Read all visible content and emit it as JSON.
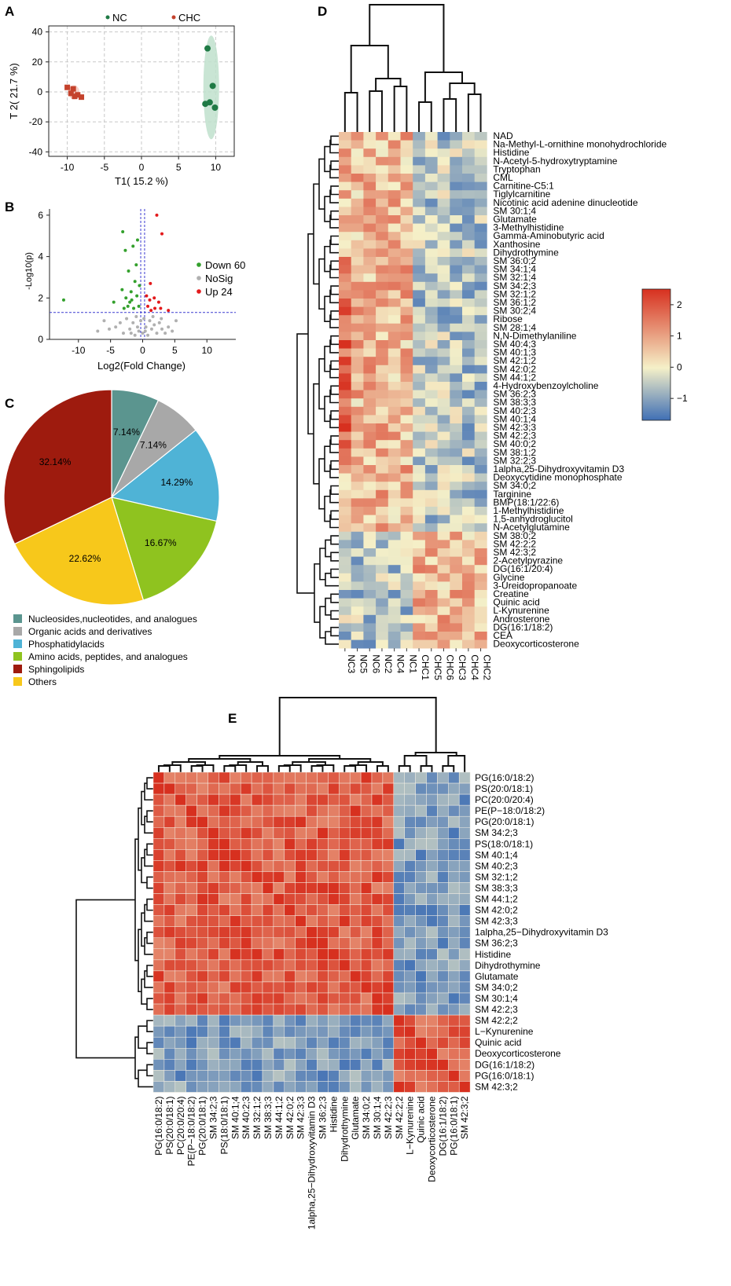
{
  "panels": {
    "a": "A",
    "b": "B",
    "c": "C",
    "d": "D",
    "e": "E"
  },
  "colors": {
    "nc": "#1f7a45",
    "chc": "#c4422c",
    "down": "#33a02c",
    "nosig": "#b0b0b0",
    "up": "#e31a1c",
    "ellipse_nc": "#bfe0cc",
    "ellipse_chc": "#f3c1b5",
    "heat_low": "#3f6fb5",
    "heat_mid": "#f5f0c8",
    "heat_high": "#d7301f",
    "pie": [
      "#5b958f",
      "#a8a8a8",
      "#4fb3d6",
      "#8fc31f",
      "#9e1b0e",
      "#f7c81b"
    ]
  },
  "chart_data": [
    {
      "type": "scatter",
      "panel": "A",
      "xlabel": "T1( 15.2 %)",
      "ylabel": "T 2( 21.7 %)",
      "xlim": [
        -12.5,
        12.5
      ],
      "ylim": [
        -43,
        44
      ],
      "xticks": [
        -10,
        -5,
        0,
        5,
        10
      ],
      "yticks": [
        -40,
        -20,
        0,
        20,
        40
      ],
      "legend": [
        "NC",
        "CHC"
      ],
      "series": [
        {
          "name": "NC",
          "points": [
            [
              8.9,
              29
            ],
            [
              9.6,
              4
            ],
            [
              9.2,
              -7
            ],
            [
              8.6,
              -8
            ],
            [
              9.9,
              -10.5
            ]
          ]
        },
        {
          "name": "CHC",
          "points": [
            [
              -10,
              3
            ],
            [
              -9.2,
              2
            ],
            [
              -9.5,
              -1
            ],
            [
              -8.6,
              -2
            ],
            [
              -9.0,
              -3
            ],
            [
              -8.1,
              -3.5
            ]
          ]
        }
      ]
    },
    {
      "type": "scatter",
      "panel": "B",
      "xlabel": "Log2(Fold Change)",
      "ylabel": "-Log10(p)",
      "xlim": [
        -14.5,
        14.5
      ],
      "ylim": [
        0,
        6.3
      ],
      "xticks": [
        -10,
        -5,
        0,
        5,
        10
      ],
      "yticks": [
        0,
        2,
        4,
        6
      ],
      "threshold_y": 1.3,
      "threshold_x": [
        -0.3,
        0.3
      ],
      "legend": [
        {
          "label": "Down",
          "count": "60"
        },
        {
          "label": "NoSig",
          "count": ""
        },
        {
          "label": "Up",
          "count": "24"
        }
      ],
      "series": [
        {
          "name": "Down",
          "points": [
            [
              -12.3,
              1.9
            ],
            [
              -3.1,
              5.2
            ],
            [
              -2.7,
              4.3
            ],
            [
              -2.2,
              3.3
            ],
            [
              -1.5,
              4.5
            ],
            [
              -0.8,
              4.8
            ],
            [
              -4.5,
              1.8
            ],
            [
              -3.2,
              2.4
            ],
            [
              -2.6,
              2.0
            ],
            [
              -2.0,
              1.8
            ],
            [
              -1.8,
              2.3
            ],
            [
              -1.2,
              2.8
            ],
            [
              -0.9,
              2.1
            ],
            [
              -0.6,
              1.6
            ],
            [
              -1.4,
              1.5
            ],
            [
              -2.3,
              1.6
            ],
            [
              -1.0,
              3.6
            ],
            [
              -0.5,
              2.6
            ],
            [
              -1.7,
              1.9
            ],
            [
              -2.9,
              1.5
            ]
          ]
        },
        {
          "name": "NoSig",
          "points": [
            [
              -7,
              0.4
            ],
            [
              -6,
              0.9
            ],
            [
              -5.2,
              0.5
            ],
            [
              -4.2,
              0.6
            ],
            [
              -3.5,
              0.8
            ],
            [
              -3,
              0.3
            ],
            [
              -2.5,
              1.0
            ],
            [
              -2,
              0.5
            ],
            [
              -1.5,
              0.8
            ],
            [
              -1.2,
              0.2
            ],
            [
              -1,
              1.1
            ],
            [
              -0.6,
              0.4
            ],
            [
              -0.3,
              0.9
            ],
            [
              0,
              0.3
            ],
            [
              0.2,
              1.0
            ],
            [
              0.5,
              0.6
            ],
            [
              0.8,
              0.2
            ],
            [
              1.1,
              0.9
            ],
            [
              1.4,
              0.5
            ],
            [
              1.8,
              0.7
            ],
            [
              2.2,
              0.3
            ],
            [
              2.6,
              0.8
            ],
            [
              3,
              0.5
            ],
            [
              3.5,
              0.3
            ],
            [
              4,
              0.6
            ],
            [
              4.6,
              0.4
            ],
            [
              5.2,
              0.9
            ],
            [
              -0.8,
              0.6
            ],
            [
              0.4,
              0.4
            ],
            [
              -1.8,
              0.3
            ],
            [
              1.6,
              1.1
            ],
            [
              2.9,
              1.0
            ]
          ]
        },
        {
          "name": "Up",
          "points": [
            [
              2.2,
              6.0
            ],
            [
              3.0,
              5.1
            ],
            [
              1.2,
              2.7
            ],
            [
              1.8,
              2.0
            ],
            [
              0.8,
              1.6
            ],
            [
              1.3,
              1.4
            ],
            [
              2.5,
              1.8
            ],
            [
              2.8,
              1.5
            ],
            [
              0.6,
              2.1
            ],
            [
              1.9,
              1.5
            ],
            [
              4.0,
              1.4
            ],
            [
              1.1,
              1.9
            ]
          ]
        }
      ]
    },
    {
      "type": "pie",
      "panel": "C",
      "values": [
        7.14,
        7.14,
        14.29,
        16.67,
        22.62,
        32.14
      ],
      "labels": [
        "7.14%",
        "7.14%",
        "14.29%",
        "16.67%",
        "22.62%",
        "32.14%"
      ],
      "categories": [
        "Nucleosides,nucleotides, and analogues",
        "Organic acids and derivatives",
        "Phosphatidylacids",
        "Amino acids, peptides, and analogues",
        "Others",
        "Sphingolipids"
      ],
      "legend": [
        "Nucleosides,nucleotides, and analogues",
        "Organic acids and derivatives",
        "Phosphatidylacids",
        "Amino acids, peptides, and analogues",
        "Sphingolipids",
        "Others"
      ],
      "legend_color_index": [
        0,
        1,
        2,
        3,
        4,
        5
      ]
    },
    {
      "type": "heatmap",
      "panel": "D",
      "colorbar_ticks": [
        "2",
        "1",
        "0",
        "−1"
      ],
      "colorbar_values": [
        2,
        1,
        0,
        -1
      ],
      "range": [
        -1.7,
        2.5
      ],
      "rows": [
        "NAD",
        "Na-Methyl-L-ornithine monohydrochloride",
        "Histidine",
        "N-Acetyl-5-hydroxytryptamine",
        "Tryptophan",
        "CML",
        "Carnitine-C5:1",
        "Tiglylcarnitine",
        "Nicotinic acid adenine dinucleotide",
        "SM 30:1;4",
        "Glutamate",
        "3-Methylhistidine",
        "Gamma-Aminobutyric acid",
        "Xanthosine",
        "Dihydrothymine",
        "SM 36:0;2",
        "SM 34:1;4",
        "SM 32:1;4",
        "SM 34:2;3",
        "SM 32:1;2",
        "SM 36:1;2",
        "SM 30:2;4",
        "Ribose",
        "SM 28:1;4",
        "N,N-Dimethylaniline",
        "SM 40:4;3",
        "SM 40:1;3",
        "SM 42:1;2",
        "SM 42:0;2",
        "SM 44:1;2",
        "4-Hydroxybenzoylcholine",
        "SM 36:2;3",
        "SM 38:3;3",
        "SM 40:2;3",
        "SM 40:1;4",
        "SM 42:3;3",
        "SM 42:2;3",
        "SM 40:0;2",
        "SM 38:1;2",
        "SM 32:2;3",
        "1alpha,25-Dihydroxyvitamin D3",
        "Deoxycytidine monophosphate",
        "SM 34:0;2",
        "Targinine",
        "BMP(18:1/22:6)",
        "1-Methylhistidine",
        "1,5-anhydroglucitol",
        "N-Acetylglutamine",
        "SM 38:0;2",
        "SM 42:2;2",
        "SM 42:3;2",
        "2-Acetylpyrazine",
        "DG(16:1/20:4)",
        "Glycine",
        "3-Ureidopropanoate",
        "Creatine",
        "Quinic acid",
        "L-Kynurenine",
        "Androsterone",
        "DG(16:1/18:2)",
        "CEA",
        "Deoxycorticosterone"
      ],
      "columns": [
        "NC3",
        "NC5",
        "NC6",
        "NC2",
        "NC4",
        "NC1",
        "CHC1",
        "CHC5",
        "CHC6",
        "CHC3",
        "CHC4",
        "CHC2"
      ],
      "n_up_rows": 48,
      "n_nc": 6
    },
    {
      "type": "heatmap",
      "panel": "E",
      "rows": [
        "PG(16:0/18:2)",
        "PS(20:0/18:1)",
        "PC(20:0/20:4)",
        "PE(P−18:0/18:2)",
        "PG(20:0/18:1)",
        "SM 34:2;3",
        "PS(18:0/18:1)",
        "SM 40:1;4",
        "SM 40:2;3",
        "SM 32:1;2",
        "SM 38:3;3",
        "SM 44:1;2",
        "SM 42:0;2",
        "SM 42:3;3",
        "1alpha,25−Dihydroxyvitamin D3",
        "SM 36:2;3",
        "Histidine",
        "Dihydrothymine",
        "Glutamate",
        "SM 34:0;2",
        "SM 30:1;4",
        "SM 42:2;3",
        "SM 42:2;2",
        "L−Kynurenine",
        "Quinic acid",
        "Deoxycorticosterone",
        "DG(16:1/18:2)",
        "PG(16:0/18:1)",
        "SM 42:3;2"
      ],
      "columns": [
        "PG(16:0/18:2)",
        "PS(20:0/18:1)",
        "PC(20:0/20:4)",
        "PE(P−18:0/18:2)",
        "PG(20:0/18:1)",
        "SM 34:2;3",
        "PS(18:0/18:1)",
        "SM 40:1;4",
        "SM 40:2;3",
        "SM 32:1;2",
        "SM 38:3;3",
        "SM 44:1;2",
        "SM 42:0;2",
        "SM 42:3;3",
        "1alpha,25−Dihydroxyvitamin D3",
        "SM 36:2;3",
        "Histidine",
        "Dihydrothymine",
        "Glutamate",
        "SM 34:0;2",
        "SM 30:1;4",
        "SM 42:2;3",
        "SM 42:2;2",
        "L−Kynurenine",
        "Quinic acid",
        "Deoxycorticosterone",
        "DG(16:1/18:2)",
        "PG(16:0/18:1)",
        "SM 42:3;2"
      ],
      "group_split": 22,
      "range": [
        -1,
        1
      ]
    }
  ]
}
